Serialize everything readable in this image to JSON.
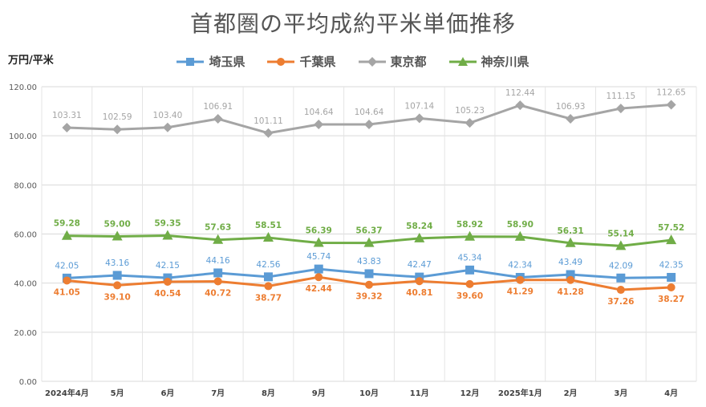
{
  "chart_data": {
    "type": "line",
    "title": "首都圏の平均成約平米単価推移",
    "ylabel": "万円/平米",
    "ylim": [
      0,
      120
    ],
    "yticks": [
      "0.00",
      "20.00",
      "40.00",
      "60.00",
      "80.00",
      "100.00",
      "120.00"
    ],
    "categories": [
      "2024年4月",
      "5月",
      "6月",
      "7月",
      "8月",
      "9月",
      "10月",
      "11月",
      "12月",
      "2025年1月",
      "2月",
      "3月",
      "4月"
    ],
    "grid": true,
    "legend_position": "top",
    "series": [
      {
        "name": "埼玉県",
        "color": "#5b9bd5",
        "marker": "square",
        "label_position": "above",
        "values": [
          42.05,
          43.16,
          42.15,
          44.16,
          42.56,
          45.74,
          43.83,
          42.47,
          45.34,
          42.34,
          43.49,
          42.09,
          42.35
        ],
        "labels": [
          "42.05",
          "43.16",
          "42.15",
          "44.16",
          "42.56",
          "45.74",
          "43.83",
          "42.47",
          "45.34",
          "42.34",
          "43.49",
          "42.09",
          "42.35"
        ]
      },
      {
        "name": "千葉県",
        "color": "#ed7d31",
        "marker": "circle",
        "label_position": "below",
        "values": [
          41.05,
          39.1,
          40.54,
          40.72,
          38.77,
          42.44,
          39.32,
          40.81,
          39.6,
          41.29,
          41.28,
          37.26,
          38.27
        ],
        "labels": [
          "41.05",
          "39.10",
          "40.54",
          "40.72",
          "38.77",
          "42.44",
          "39.32",
          "40.81",
          "39.60",
          "41.29",
          "41.28",
          "37.26",
          "38.27"
        ]
      },
      {
        "name": "東京都",
        "color": "#a5a5a5",
        "marker": "diamond",
        "label_position": "above",
        "values": [
          103.31,
          102.59,
          103.4,
          106.91,
          101.11,
          104.64,
          104.64,
          107.14,
          105.23,
          112.44,
          106.93,
          111.15,
          112.65
        ],
        "labels": [
          "103.31",
          "102.59",
          "103.40",
          "106.91",
          "101.11",
          "104.64",
          "104.64",
          "107.14",
          "105.23",
          "112.44",
          "106.93",
          "111.15",
          "112.65"
        ]
      },
      {
        "name": "神奈川県",
        "color": "#70ad47",
        "marker": "triangle",
        "label_position": "above",
        "values": [
          59.28,
          59.0,
          59.35,
          57.63,
          58.51,
          56.39,
          56.37,
          58.24,
          58.92,
          58.9,
          56.31,
          55.14,
          57.52
        ],
        "labels": [
          "59.28",
          "59.00",
          "59.35",
          "57.63",
          "58.51",
          "56.39",
          "56.37",
          "58.24",
          "58.92",
          "58.90",
          "56.31",
          "55.14",
          "57.52"
        ]
      }
    ]
  }
}
